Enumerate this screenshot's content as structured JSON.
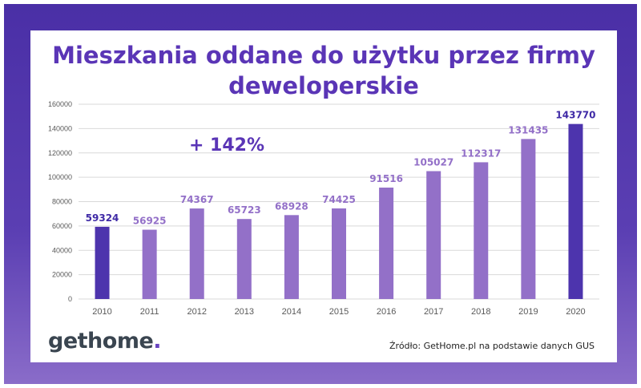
{
  "title_lines": [
    "Mieszkania oddane do użytku przez firmy",
    "deweloperskie"
  ],
  "annotation": "+ 142%",
  "brand": {
    "part1": "gethome",
    "part2": "."
  },
  "source": "Źródło: GetHome.pl na podstawie danych GUS",
  "colors": {
    "frame": "#4a2fa6",
    "bar_highlight": "#4d34ad",
    "bar_regular": "#9370c8",
    "label_highlight": "#3f2aa6",
    "label_regular": "#9370c8",
    "title": "#5a35b6"
  },
  "chart_data": {
    "type": "bar",
    "categories": [
      "2010",
      "2011",
      "2012",
      "2013",
      "2014",
      "2015",
      "2016",
      "2017",
      "2018",
      "2019",
      "2020"
    ],
    "values": [
      59324,
      56925,
      74367,
      65723,
      68928,
      74425,
      91516,
      105027,
      112317,
      131435,
      143770
    ],
    "highlight": [
      "2010",
      "2020"
    ],
    "ylim": [
      0,
      160000
    ],
    "yticks": [
      0,
      20000,
      40000,
      60000,
      80000,
      100000,
      120000,
      140000,
      160000
    ],
    "grid": true,
    "xlabel": "",
    "ylabel": ""
  }
}
